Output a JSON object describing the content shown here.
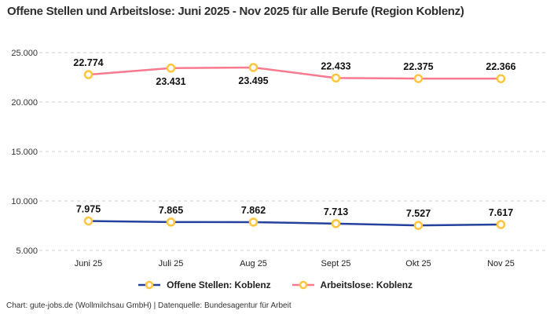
{
  "title": "Offene Stellen und Arbeitslose: Juni 2025 - Nov 2025 für alle Berufe (Region Koblenz)",
  "footer": "Chart: gute-jobs.de (Wollmilchsau GmbH) | Datenquelle: Bundesagentur für Arbeit",
  "colors": {
    "background": "#ffffff",
    "grid": "#cccccc",
    "title_text": "#2e2e2e",
    "axis_text": "#333333",
    "data_label_text": "#111111",
    "marker_stroke": "#FFC53D",
    "marker_fill": "#ffffff"
  },
  "chart_data": {
    "type": "line",
    "title": "Offene Stellen und Arbeitslose: Juni 2025 - Nov 2025 für alle Berufe (Region Koblenz)",
    "categories": [
      "Juni 25",
      "Juli 25",
      "Aug 25",
      "Sept 25",
      "Okt 25",
      "Nov 25"
    ],
    "series": [
      {
        "name": "Offene Stellen: Koblenz",
        "color": "#24419B",
        "values": [
          7975,
          7865,
          7862,
          7713,
          7527,
          7617
        ],
        "labels": [
          "7.975",
          "7.865",
          "7.862",
          "7.713",
          "7.527",
          "7.617"
        ],
        "label_position": [
          "above",
          "above",
          "above",
          "above",
          "above",
          "above"
        ]
      },
      {
        "name": "Arbeitslose: Koblenz",
        "color": "#F9798F",
        "values": [
          22774,
          23431,
          23495,
          22433,
          22375,
          22366
        ],
        "labels": [
          "22.774",
          "23.431",
          "23.495",
          "22.433",
          "22.375",
          "22.366"
        ],
        "label_position": [
          "above",
          "below",
          "below",
          "above",
          "above",
          "above"
        ]
      }
    ],
    "xlabel": "",
    "ylabel": "",
    "ylim": [
      5000,
      25000
    ],
    "yticks": [
      5000,
      10000,
      15000,
      20000,
      25000
    ],
    "ytick_labels": [
      "5.000",
      "10.000",
      "15.000",
      "20.000",
      "25.000"
    ],
    "grid": "horizontal-dashed",
    "legend_position": "bottom"
  }
}
